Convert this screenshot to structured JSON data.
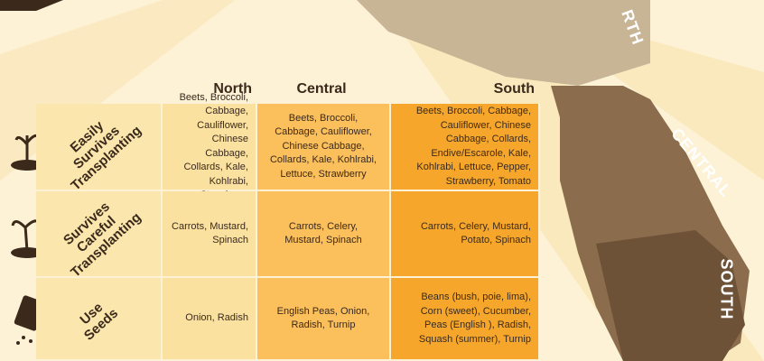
{
  "map": {
    "labels": [
      "RTH",
      "CENTRAL",
      "SOUTH"
    ]
  },
  "table": {
    "columns": [
      "North",
      "Central",
      "South"
    ],
    "rows": [
      {
        "label": [
          "Easily",
          "Survives",
          "Transplanting"
        ],
        "cells": [
          [
            "Beets, Broccoli,",
            "Cabbage, Cauliflower,",
            "Chinese Cabbage,",
            "Collards, Kale, Kohlrabi,",
            "Strawberry"
          ],
          [
            "Beets, Broccoli,",
            "Cabbage, Cauliflower,",
            "Chinese Cabbage,",
            "Collards, Kale, Kohlrabi,",
            "Lettuce, Strawberry"
          ],
          [
            "Beets, Broccoli, Cabbage,",
            "Cauliflower, Chinese",
            "Cabbage, Collards,",
            "Endive/Escarole, Kale,",
            "Kohlrabi, Lettuce, Pepper,",
            "Strawberry, Tomato"
          ]
        ]
      },
      {
        "label": [
          "Survives",
          "Careful",
          "Transplanting"
        ],
        "cells": [
          [
            "Carrots, Mustard,",
            "Spinach"
          ],
          [
            "Carrots, Celery,",
            "Mustard, Spinach"
          ],
          [
            "Carrots, Celery, Mustard,",
            "Potato, Spinach"
          ]
        ]
      },
      {
        "label": [
          "Use",
          "Seeds"
        ],
        "cells": [
          [
            "Onion, Radish"
          ],
          [
            "English Peas, Onion,",
            "Radish, Turnip"
          ],
          [
            "Beans (bush, poie, lima),",
            "Corn (sweet), Cucumber,",
            "Peas (English ), Radish,",
            "Squash (summer), Turnip"
          ]
        ]
      }
    ]
  }
}
